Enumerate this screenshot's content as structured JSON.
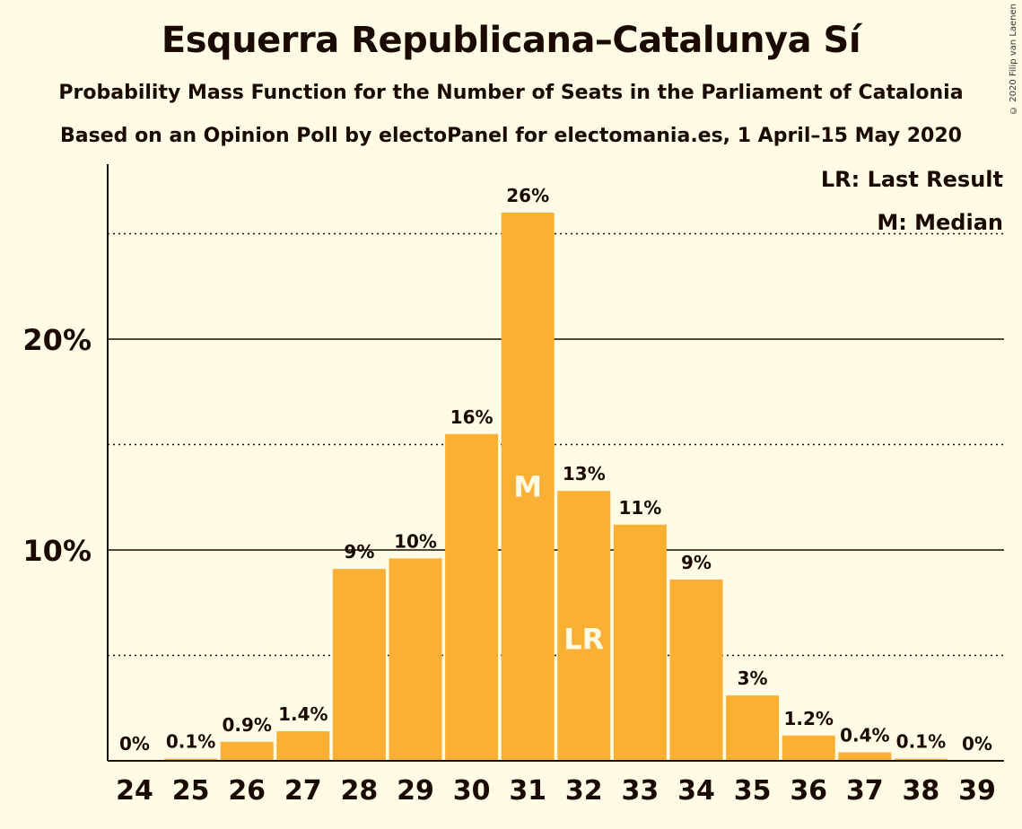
{
  "chart_data": {
    "type": "bar",
    "title": "Esquerra Republicana–Catalunya Sí",
    "subtitle": "Probability Mass Function for the Number of Seats in the Parliament of Catalonia",
    "subtitle2": "Based on an Opinion Poll by electoPanel for electomania.es, 1 April–15 May 2020",
    "copyright": "© 2020 Filip van Laenen",
    "categories": [
      "24",
      "25",
      "26",
      "27",
      "28",
      "29",
      "30",
      "31",
      "32",
      "33",
      "34",
      "35",
      "36",
      "37",
      "38",
      "39"
    ],
    "values": [
      0,
      0.1,
      0.9,
      1.4,
      9.1,
      9.6,
      15.5,
      26.0,
      12.8,
      11.2,
      8.6,
      3.1,
      1.2,
      0.4,
      0.1,
      0
    ],
    "labels": [
      "0%",
      "0.1%",
      "0.9%",
      "1.4%",
      "9%",
      "10%",
      "16%",
      "26%",
      "13%",
      "11%",
      "9%",
      "3%",
      "1.2%",
      "0.4%",
      "0.1%",
      "0%"
    ],
    "ylim": [
      0,
      28.5
    ],
    "y_ticks": [
      {
        "value": 10,
        "label": "10%"
      },
      {
        "value": 20,
        "label": "20%"
      }
    ],
    "minor_gridlines": [
      5,
      15,
      25
    ],
    "median_seat": "31",
    "median_marker": "M",
    "last_result_seat": "32",
    "last_result_marker": "LR",
    "legend": {
      "placement": "top-right",
      "items": [
        "LR: Last Result",
        "M: Median"
      ]
    },
    "bar_color": "#FBB034"
  }
}
